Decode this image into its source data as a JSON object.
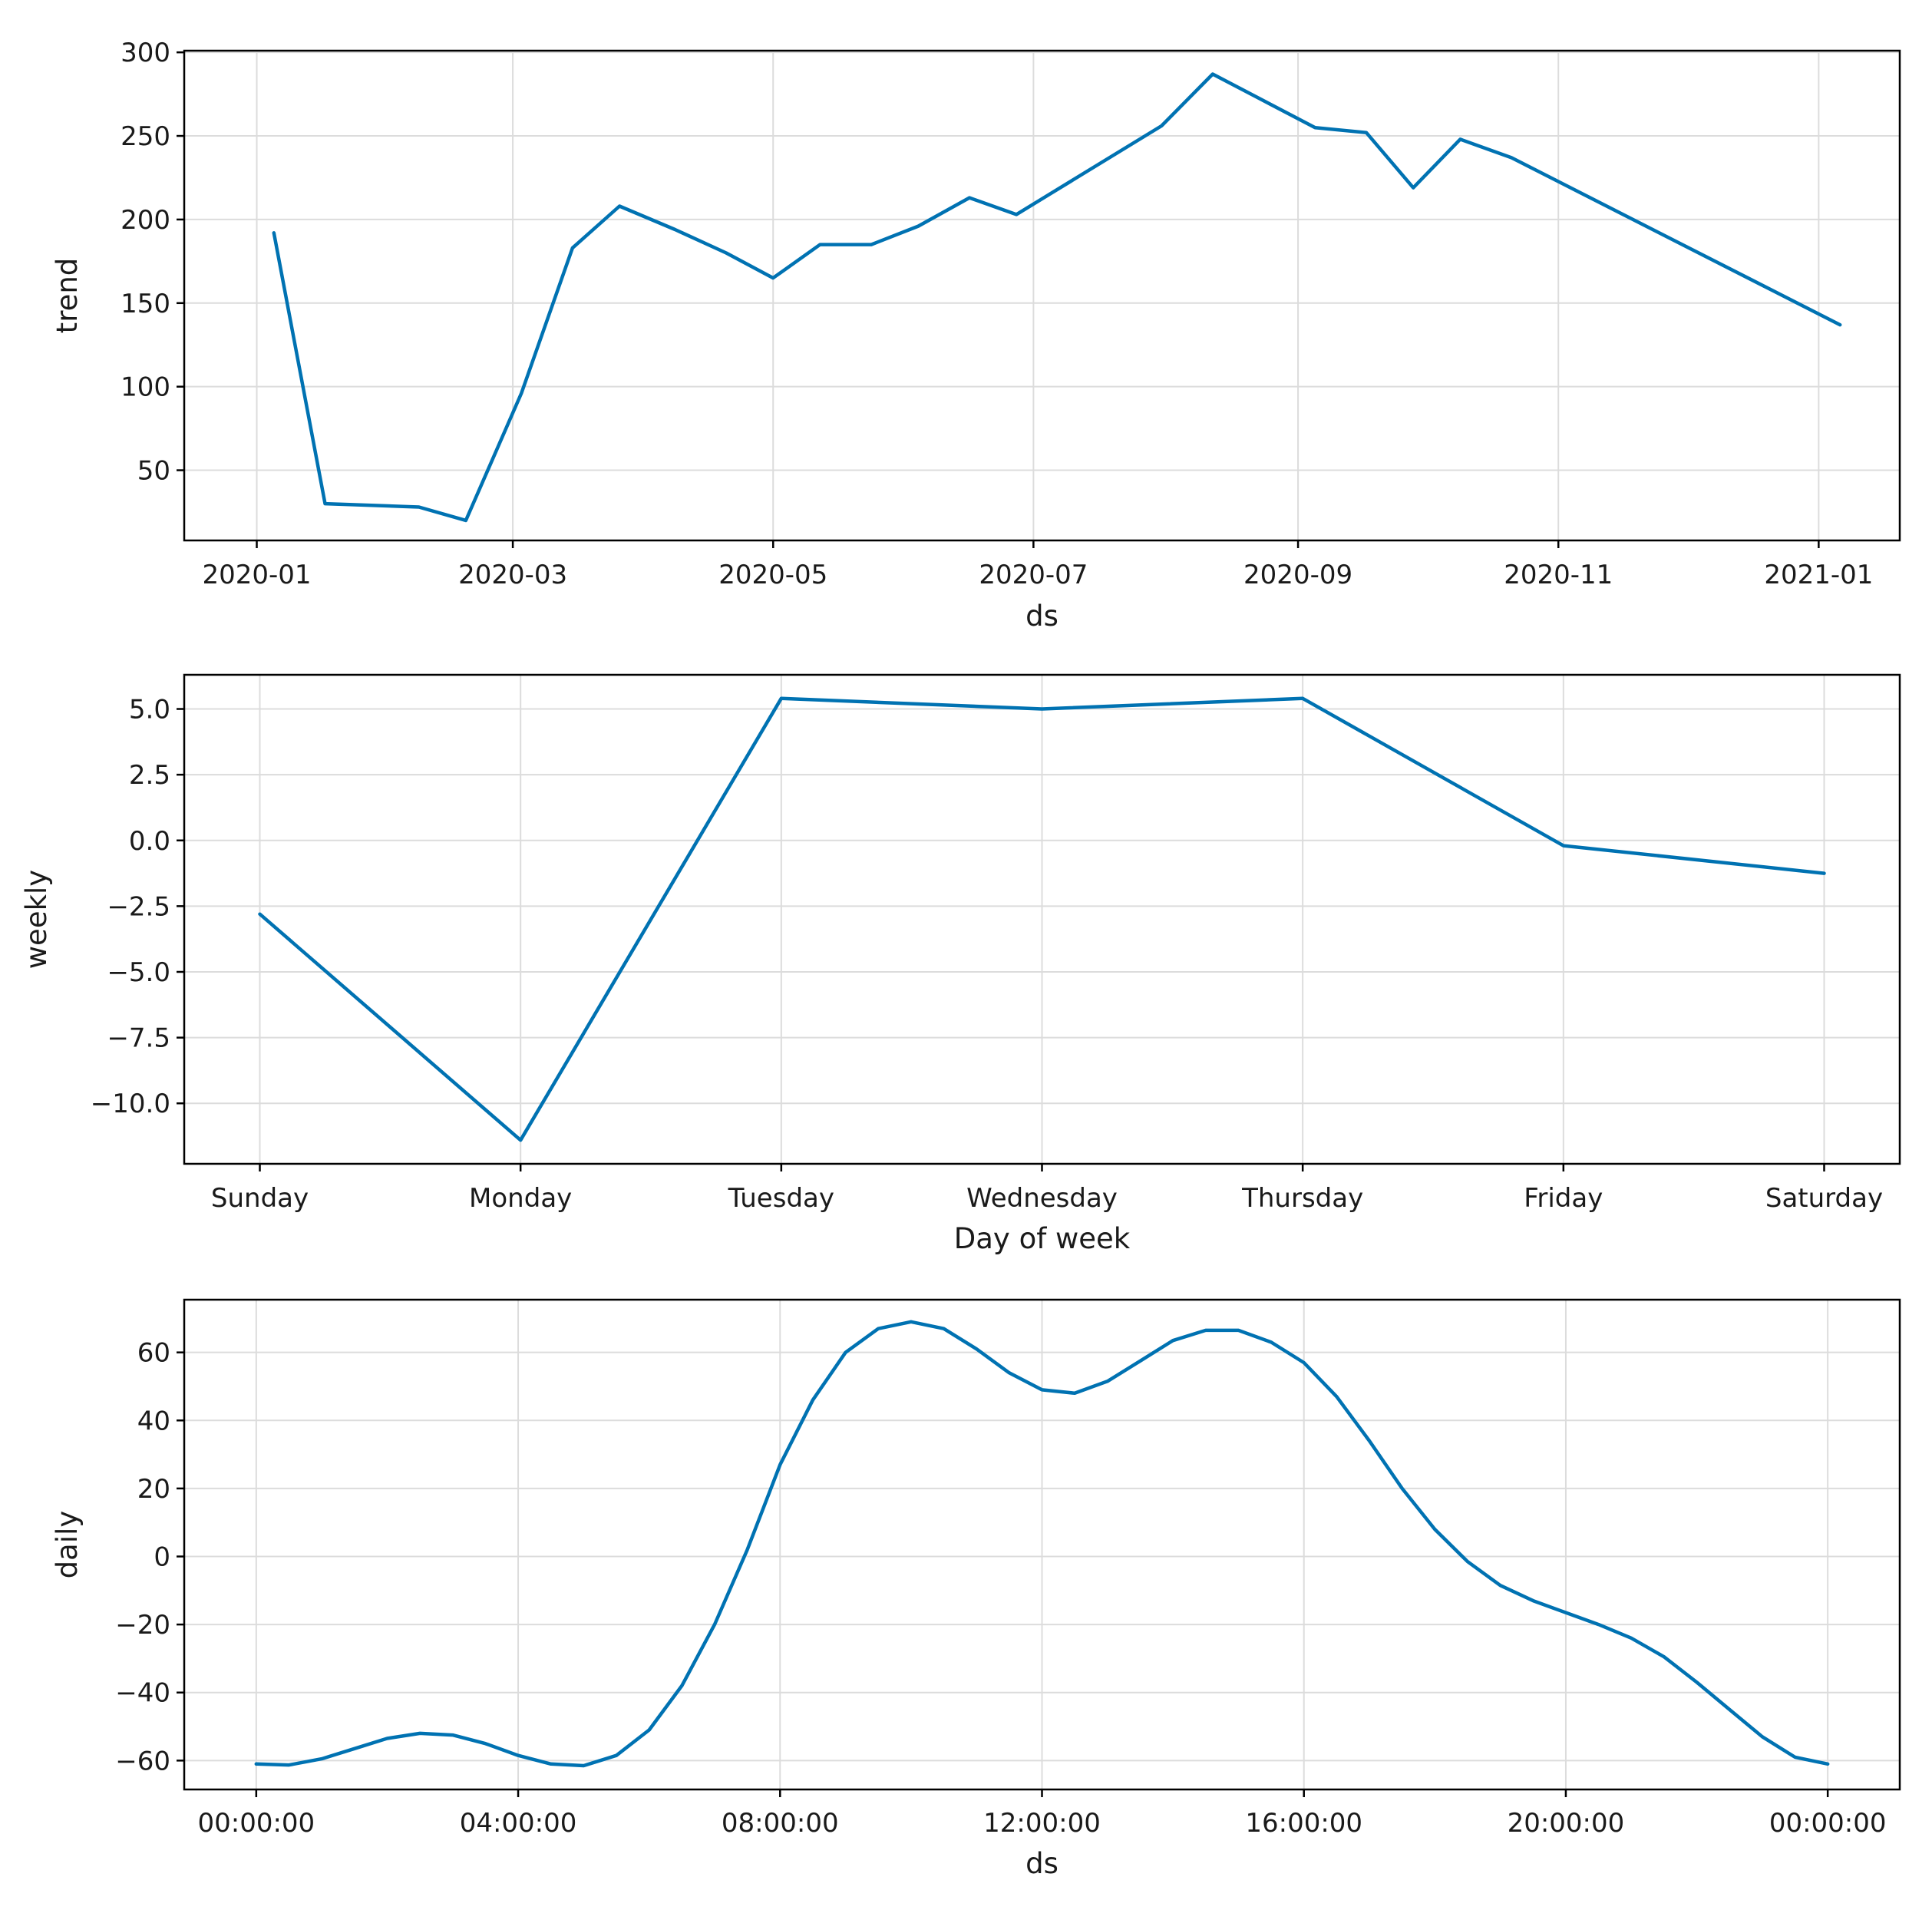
{
  "colors": {
    "series": "#0072B2"
  },
  "chart_data": [
    {
      "type": "line",
      "name": "trend",
      "xlabel": "ds",
      "ylabel": "trend",
      "x_kind": "date",
      "xlim": [
        "2019-12-15",
        "2021-01-20"
      ],
      "ylim": [
        8,
        301
      ],
      "xticks": [
        "2020-01-01",
        "2020-03-01",
        "2020-05-01",
        "2020-07-01",
        "2020-09-01",
        "2020-11-01",
        "2021-01-01"
      ],
      "xtick_labels": [
        "2020-01",
        "2020-03",
        "2020-05",
        "2020-07",
        "2020-09",
        "2020-11",
        "2021-01"
      ],
      "yticks": [
        50,
        100,
        150,
        200,
        250,
        300
      ],
      "ytick_labels": [
        "50",
        "100",
        "150",
        "200",
        "250",
        "300"
      ],
      "grid": true,
      "x": [
        "2020-01-05",
        "2020-01-17",
        "2020-02-08",
        "2020-02-19",
        "2020-03-03",
        "2020-03-15",
        "2020-03-26",
        "2020-04-08",
        "2020-04-20",
        "2020-05-01",
        "2020-05-12",
        "2020-05-24",
        "2020-06-04",
        "2020-06-16",
        "2020-06-27",
        "2020-07-31",
        "2020-08-12",
        "2020-09-05",
        "2020-09-17",
        "2020-09-28",
        "2020-10-09",
        "2020-10-21",
        "2021-01-06"
      ],
      "values": [
        192,
        30,
        28,
        20,
        96,
        183,
        208,
        194,
        180,
        165,
        185,
        185,
        196,
        213,
        203,
        256,
        287,
        255,
        252,
        219,
        248,
        237,
        137
      ]
    },
    {
      "type": "line",
      "name": "weekly",
      "xlabel": "Day of week",
      "ylabel": "weekly",
      "x_kind": "category",
      "categories": [
        "Sunday",
        "Monday",
        "Tuesday",
        "Wednesday",
        "Thursday",
        "Friday",
        "Saturday"
      ],
      "xlim": [
        -0.29,
        6.29
      ],
      "ylim": [
        -12.3,
        6.3
      ],
      "yticks": [
        5.0,
        2.5,
        0.0,
        -2.5,
        -5.0,
        -7.5,
        -10.0
      ],
      "ytick_labels": [
        "5.0",
        "2.5",
        "0.0",
        "−2.5",
        "−5.0",
        "−7.5",
        "−10.0"
      ],
      "grid": true,
      "values": [
        -2.8,
        -11.4,
        5.4,
        5.0,
        5.4,
        -0.2,
        -1.25
      ]
    },
    {
      "type": "line",
      "name": "daily",
      "xlabel": "ds",
      "ylabel": "daily",
      "x_kind": "hours",
      "xlim": [
        -1.1,
        25.1
      ],
      "ylim": [
        -68.5,
        75.5
      ],
      "xticks": [
        0,
        4,
        8,
        12,
        16,
        20,
        24
      ],
      "xtick_labels": [
        "00:00:00",
        "04:00:00",
        "08:00:00",
        "12:00:00",
        "16:00:00",
        "20:00:00",
        "00:00:00"
      ],
      "yticks": [
        60,
        40,
        20,
        0,
        -20,
        -40,
        -60
      ],
      "ytick_labels": [
        "60",
        "40",
        "20",
        "0",
        "−20",
        "−40",
        "−60"
      ],
      "grid": true,
      "x": [
        0,
        0.5,
        1,
        1.5,
        2,
        2.5,
        3,
        3.5,
        4,
        4.5,
        5,
        5.5,
        6,
        6.5,
        7,
        7.5,
        8,
        8.5,
        9,
        9.5,
        10,
        10.5,
        11,
        11.5,
        12,
        12.5,
        13,
        13.5,
        14,
        14.5,
        15,
        15.5,
        16,
        16.5,
        17,
        17.5,
        18,
        18.5,
        19,
        19.5,
        20,
        20.5,
        21,
        21.5,
        22,
        22.5,
        23,
        23.5,
        24
      ],
      "values": [
        -61,
        -61.3,
        -59.5,
        -56.5,
        -53.5,
        -52,
        -52.5,
        -55,
        -58.5,
        -61,
        -61.5,
        -58.5,
        -51,
        -38,
        -20,
        2,
        27,
        46,
        60,
        67,
        69,
        67,
        61,
        54,
        49,
        48,
        51.5,
        57.5,
        63.5,
        66.5,
        66.5,
        63,
        57,
        47,
        34,
        20,
        8,
        -1.5,
        -8.5,
        -13,
        -16.5,
        -20,
        -24,
        -29.5,
        -37,
        -45,
        -53,
        -59,
        -61
      ]
    }
  ]
}
